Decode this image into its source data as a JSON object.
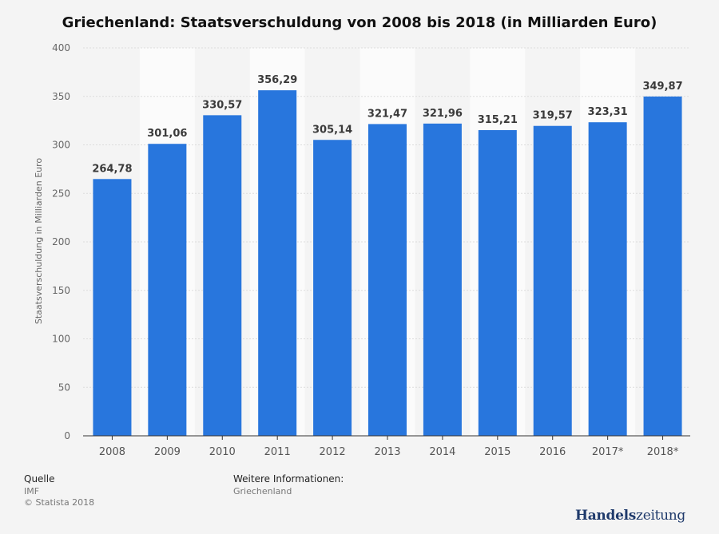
{
  "chart_data": {
    "type": "bar",
    "title": "Griechenland: Staatsverschuldung von 2008 bis 2018 (in Milliarden Euro)",
    "xlabel": "",
    "ylabel": "Staatsverschuldung in Milliarden Euro",
    "ylim": [
      0,
      400
    ],
    "yticks": [
      0,
      50,
      100,
      150,
      200,
      250,
      300,
      350,
      400
    ],
    "categories": [
      "2008",
      "2009",
      "2010",
      "2011",
      "2012",
      "2013",
      "2014",
      "2015",
      "2016",
      "2017*",
      "2018*"
    ],
    "values": [
      264.78,
      301.06,
      330.57,
      356.29,
      305.14,
      321.47,
      321.96,
      315.21,
      319.57,
      323.31,
      349.87
    ],
    "value_labels": [
      "264,78",
      "301,06",
      "330,57",
      "356,29",
      "305,14",
      "321,47",
      "321,96",
      "315,21",
      "319,57",
      "323,31",
      "349,87"
    ],
    "bar_color": "#2876dd",
    "grid": true
  },
  "footer": {
    "source_title": "Quelle",
    "source_name": "IMF",
    "copyright": "© Statista 2018",
    "info_title": "Weitere Informationen:",
    "info_text": "Griechenland"
  },
  "brand": {
    "part1": "Handels",
    "part2": "zeitung"
  }
}
